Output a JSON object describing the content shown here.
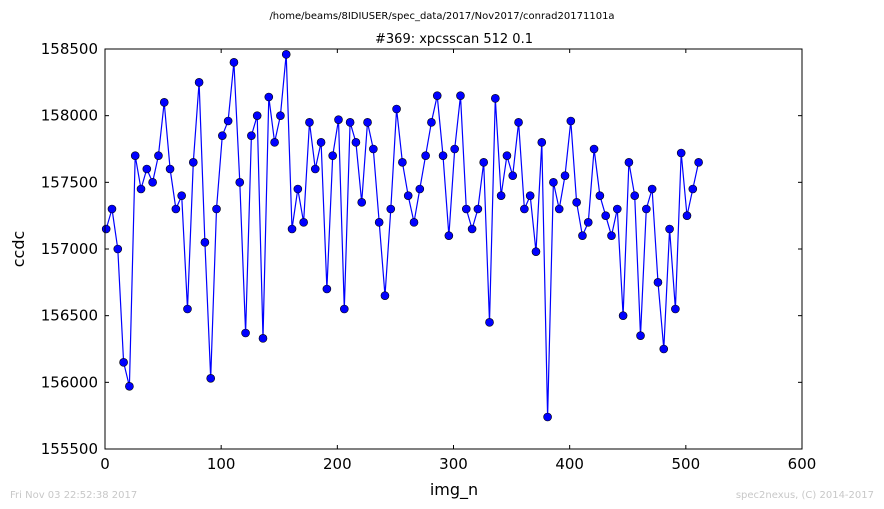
{
  "suptitle": "/home/beams/8IDIUSER/spec_data/2017/Nov2017/conrad20171101a",
  "footer_left": "Fri Nov 03 22:52:38 2017",
  "footer_right": "spec2nexus, (C) 2014-2017",
  "chart_data": {
    "type": "line",
    "title": "#369: xpcsscan 512 0.1",
    "xlabel": "img_n",
    "ylabel": "ccdc",
    "xlim": [
      0,
      600
    ],
    "ylim": [
      155500,
      158500
    ],
    "xticks": [
      0,
      100,
      200,
      300,
      400,
      500,
      600
    ],
    "yticks": [
      155500,
      156000,
      156500,
      157000,
      157500,
      158000,
      158500
    ],
    "xtick_labels": [
      "0",
      "100",
      "200",
      "300",
      "400",
      "500",
      "600"
    ],
    "ytick_labels": [
      "155500",
      "156000",
      "156500",
      "157000",
      "157500",
      "158000",
      "158500"
    ],
    "grid": false,
    "legend": "none",
    "colors": {
      "line": "#0000ff",
      "marker": "#0000ff"
    },
    "series": [
      {
        "x": [
          1,
          6,
          11,
          16,
          21,
          26,
          31,
          36,
          41,
          46,
          51,
          56,
          61,
          66,
          71,
          76,
          81,
          86,
          91,
          96,
          101,
          106,
          111,
          116,
          121,
          126,
          131,
          136,
          141,
          146,
          151,
          156,
          161,
          166,
          171,
          176,
          181,
          186,
          191,
          196,
          201,
          206,
          211,
          216,
          221,
          226,
          231,
          236,
          241,
          246,
          251,
          256,
          261,
          266,
          271,
          276,
          281,
          286,
          291,
          296,
          301,
          306,
          311,
          316,
          321,
          326,
          331,
          336,
          341,
          346,
          351,
          356,
          361,
          366,
          371,
          376,
          381,
          386,
          391,
          396,
          401,
          406,
          411,
          416,
          421,
          426,
          431,
          436,
          441,
          446,
          451,
          456,
          461,
          466,
          471,
          476,
          481,
          486,
          491,
          496,
          501,
          506,
          511
        ],
        "y": [
          157150,
          157300,
          157000,
          156150,
          155970,
          157700,
          157450,
          157600,
          157500,
          157700,
          158100,
          157600,
          157300,
          157400,
          156550,
          157650,
          158250,
          157050,
          156030,
          157300,
          157850,
          157960,
          158400,
          157500,
          156370,
          157850,
          158000,
          156330,
          158140,
          157800,
          158000,
          158460,
          157150,
          157450,
          157200,
          157950,
          157600,
          157800,
          156700,
          157700,
          157970,
          156550,
          157950,
          157800,
          157350,
          157950,
          157750,
          157200,
          156650,
          157300,
          158050,
          157650,
          157400,
          157200,
          157450,
          157700,
          157950,
          158150,
          157700,
          157100,
          157750,
          158150,
          157300,
          157150,
          157300,
          157650,
          156450,
          158130,
          157400,
          157700,
          157550,
          157950,
          157300,
          157400,
          156980,
          157800,
          155740,
          157500,
          157300,
          157550,
          157960,
          157350,
          157100,
          157200,
          157750,
          157400,
          157250,
          157100,
          157300,
          156500,
          157650,
          157400,
          156350,
          157300,
          157450,
          156750,
          156250,
          157150,
          156550,
          157720,
          157250,
          157450,
          157650
        ]
      }
    ]
  }
}
